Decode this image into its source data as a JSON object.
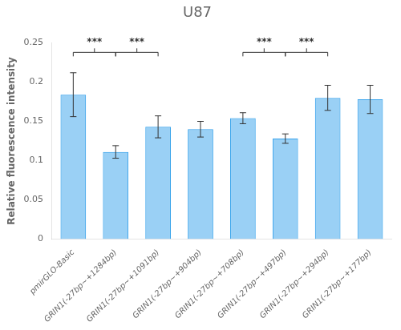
{
  "chart_data": {
    "type": "bar",
    "title": "U87",
    "ylabel": "Relative fluorescence intensity",
    "categories": [
      "pmirGLO-Basic",
      "GRIN1(-27bp~+1284bp)",
      "GRIN1(-27bp~+1091bp)",
      "GRIN1(-27bp~+904bp)",
      "GRIN1(-27bp~+708bp)",
      "GRIN1(-27bp~+497bp)",
      "GRIN1(-27bp~+294bp)",
      "GRIN1(-27bp~+177bp)"
    ],
    "values": [
      0.184,
      0.111,
      0.143,
      0.14,
      0.154,
      0.128,
      0.18,
      0.178
    ],
    "errors": [
      0.028,
      0.008,
      0.014,
      0.01,
      0.007,
      0.006,
      0.016,
      0.018
    ],
    "ylim": [
      0,
      0.25
    ],
    "yticks": [
      0,
      0.05,
      0.1,
      0.15,
      0.2,
      0.25
    ],
    "grid": false,
    "significance_brackets": [
      {
        "from": "pmirGLO-Basic",
        "to": "GRIN1(-27bp~+1284bp)",
        "y": 0.238,
        "label": "***"
      },
      {
        "from": "GRIN1(-27bp~+1284bp)",
        "to": "GRIN1(-27bp~+1091bp)",
        "y": 0.238,
        "label": "***"
      },
      {
        "from": "GRIN1(-27bp~+708bp)",
        "to": "GRIN1(-27bp~+497bp)",
        "y": 0.238,
        "label": "***"
      },
      {
        "from": "GRIN1(-27bp~+497bp)",
        "to": "GRIN1(-27bp~+294bp)",
        "y": 0.238,
        "label": "***"
      }
    ]
  }
}
